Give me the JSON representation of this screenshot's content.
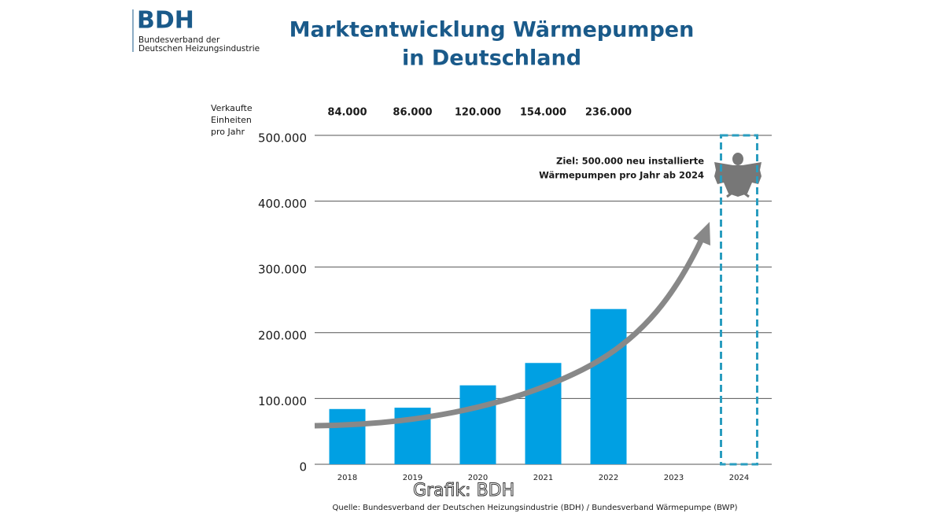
{
  "logo": {
    "name": "BDH",
    "lines": [
      "Bundesverband der",
      "Deutschen Heizungsindustrie"
    ]
  },
  "chart_data": {
    "type": "bar",
    "title": [
      "Marktentwicklung Wärmepumpen",
      "in Deutschland"
    ],
    "y_label": [
      "Verkaufte",
      "Einheiten",
      "pro Jahr"
    ],
    "categories": [
      "2018",
      "2019",
      "2020",
      "2021",
      "2022",
      "2023",
      "2024"
    ],
    "values": [
      84000,
      86000,
      120000,
      154000,
      236000,
      null,
      null
    ],
    "value_labels": [
      "84.000",
      "86.000",
      "120.000",
      "154.000",
      "236.000",
      null,
      null
    ],
    "color": "#00a0e3",
    "ylim": [
      0,
      500000
    ],
    "yticks": [
      0,
      {
        "value": 100000,
        "label": "100.000"
      },
      {
        "value": 200000,
        "label": "200.000"
      },
      {
        "value": 300000,
        "label": "300.000"
      },
      {
        "value": 400000,
        "label": "400.000"
      },
      {
        "value": 500000,
        "label": "500.000"
      }
    ],
    "grid": true,
    "target": {
      "value": 500000,
      "color": "#2a9dbf",
      "label": [
        "Ziel: 500.000 neu installierte",
        "Wärmepumpen pro Jahr ab 2024"
      ]
    },
    "source": "Quelle: Bundesverband der Deutschen Heizungsindustrie (BDH) / Bundesverband Wärmepumpe (BWP)",
    "credit": "Grafik: BDH"
  }
}
